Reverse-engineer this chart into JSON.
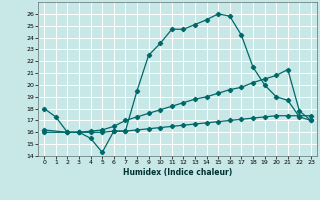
{
  "xlabel": "Humidex (Indice chaleur)",
  "bg_color": "#c8e8e8",
  "grid_color": "#ffffff",
  "line_color": "#006868",
  "xlim": [
    -0.5,
    23.5
  ],
  "ylim": [
    14,
    27
  ],
  "yticks": [
    14,
    15,
    16,
    17,
    18,
    19,
    20,
    21,
    22,
    23,
    24,
    25,
    26
  ],
  "xticks": [
    0,
    1,
    2,
    3,
    4,
    5,
    6,
    7,
    8,
    9,
    10,
    11,
    12,
    13,
    14,
    15,
    16,
    17,
    18,
    19,
    20,
    21,
    22,
    23
  ],
  "line1": {
    "x": [
      0,
      1,
      2,
      3,
      4,
      5,
      6,
      7,
      8,
      9,
      10,
      11,
      12,
      13,
      14,
      15,
      16,
      17,
      18,
      19,
      20,
      21,
      22,
      23
    ],
    "y": [
      18.0,
      17.3,
      16.0,
      16.0,
      15.5,
      14.3,
      16.1,
      16.1,
      19.5,
      22.5,
      23.5,
      24.7,
      24.7,
      25.1,
      25.5,
      26.0,
      25.8,
      24.2,
      21.5,
      20.0,
      19.0,
      18.7,
      17.3,
      17.0
    ]
  },
  "line2": {
    "x": [
      0,
      2,
      3,
      4,
      5,
      6,
      7,
      8,
      9,
      10,
      11,
      12,
      13,
      14,
      15,
      16,
      17,
      18,
      19,
      20,
      21,
      22,
      23
    ],
    "y": [
      16.2,
      16.0,
      16.0,
      16.1,
      16.2,
      16.5,
      17.0,
      17.3,
      17.6,
      17.9,
      18.2,
      18.5,
      18.8,
      19.0,
      19.3,
      19.6,
      19.8,
      20.2,
      20.5,
      20.8,
      21.3,
      17.8,
      17.0
    ]
  },
  "line3": {
    "x": [
      0,
      2,
      3,
      4,
      5,
      6,
      7,
      8,
      9,
      10,
      11,
      12,
      13,
      14,
      15,
      16,
      17,
      18,
      19,
      20,
      21,
      22,
      23
    ],
    "y": [
      16.0,
      16.0,
      16.0,
      16.0,
      16.0,
      16.1,
      16.1,
      16.2,
      16.3,
      16.4,
      16.5,
      16.6,
      16.7,
      16.8,
      16.9,
      17.0,
      17.1,
      17.2,
      17.3,
      17.4,
      17.4,
      17.4,
      17.4
    ]
  }
}
